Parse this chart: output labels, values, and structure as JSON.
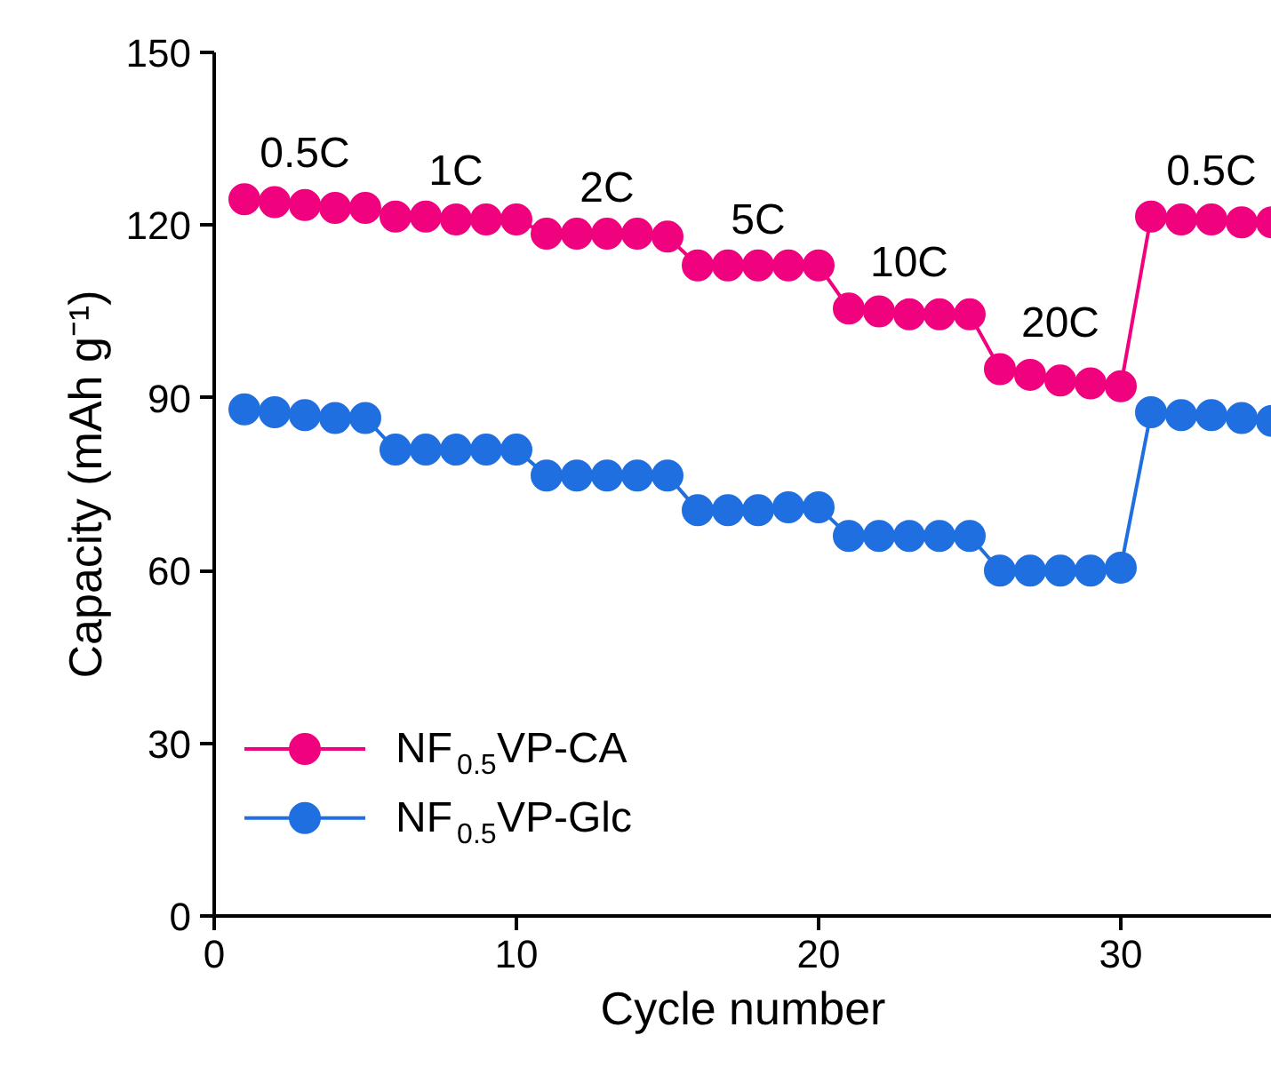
{
  "chart_data": {
    "type": "line",
    "xlabel": "Cycle number",
    "ylabel": "Capacity (mAh g⁻¹)",
    "xlim": [
      0,
      35
    ],
    "ylim": [
      0,
      150
    ],
    "xticks": [
      0,
      10,
      20,
      30
    ],
    "yticks": [
      0,
      30,
      60,
      90,
      120,
      150
    ],
    "marker": "circle",
    "line_style": "solid",
    "grid": false,
    "legend": "bottom left",
    "x": [
      1,
      2,
      3,
      4,
      5,
      6,
      7,
      8,
      9,
      10,
      11,
      12,
      13,
      14,
      15,
      16,
      17,
      18,
      19,
      20,
      21,
      22,
      23,
      24,
      25,
      26,
      27,
      28,
      29,
      30,
      31,
      32,
      33,
      34,
      35
    ],
    "series": [
      {
        "name": "NF$_{0.5}$VP-CA",
        "color": "#f0027f",
        "values": [
          124.5,
          124,
          123.5,
          123,
          123,
          121.5,
          121.5,
          121,
          121,
          121,
          118.5,
          118.5,
          118.5,
          118.5,
          118,
          113,
          113,
          113,
          113,
          113,
          105.5,
          105,
          104.5,
          104.5,
          104.5,
          95,
          94,
          93,
          92.5,
          92,
          121.5,
          121,
          121,
          120.5,
          120.5
        ]
      },
      {
        "name": "NF$_{0.5}$VP-Glc",
        "color": "#1f6fe0",
        "values": [
          88,
          87.5,
          87,
          86.5,
          86.5,
          81,
          81,
          81,
          81,
          81,
          76.5,
          76.5,
          76.5,
          76.5,
          76.5,
          70.5,
          70.5,
          70.5,
          71,
          71,
          66,
          66,
          66,
          66,
          66,
          60,
          60,
          60,
          60,
          60.5,
          87.5,
          87,
          87,
          86.5,
          86
        ]
      }
    ],
    "annotations": [
      "0.5C",
      "1C",
      "2C",
      "5C",
      "10C",
      "20C",
      "0.5C"
    ]
  }
}
